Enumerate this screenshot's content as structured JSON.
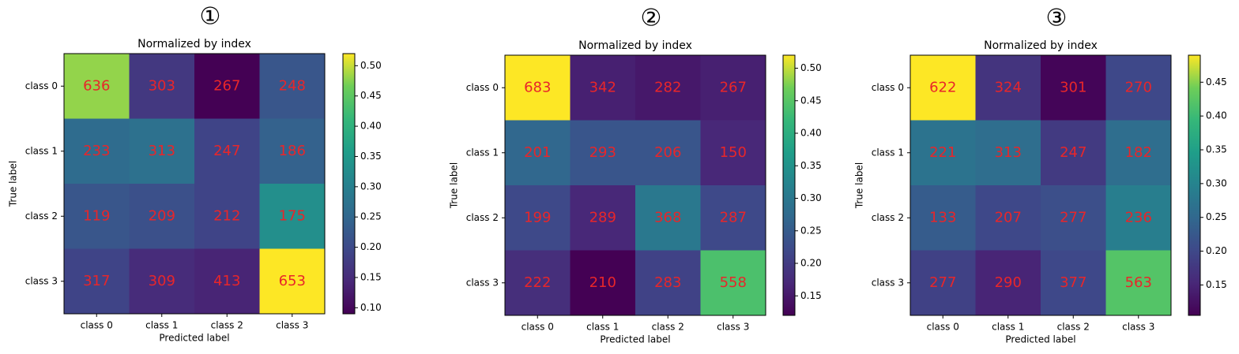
{
  "chart_data": [
    {
      "type": "heatmap",
      "label": "①",
      "title": "Normalized by index",
      "xlabel": "Predicted label",
      "ylabel": "True label",
      "categories": [
        "class 0",
        "class 1",
        "class 2",
        "class 3"
      ],
      "y_categories": [
        "class 0",
        "class 1",
        "class 2",
        "class 3"
      ],
      "values": [
        [
          636,
          303,
          267,
          248
        ],
        [
          233,
          313,
          247,
          186
        ],
        [
          119,
          209,
          212,
          175
        ],
        [
          317,
          309,
          413,
          653
        ]
      ],
      "z": [
        [
          0.48,
          0.17,
          0.09,
          0.22
        ],
        [
          0.26,
          0.27,
          0.19,
          0.24
        ],
        [
          0.22,
          0.21,
          0.19,
          0.33
        ],
        [
          0.19,
          0.15,
          0.14,
          0.52
        ]
      ],
      "zlim": [
        0.09,
        0.52
      ],
      "colormap": "viridis",
      "text_color": "#e8262a",
      "zticks": [
        {
          "value": 0.1,
          "label": "0.10"
        },
        {
          "value": 0.15,
          "label": "0.15"
        },
        {
          "value": 0.2,
          "label": "0.20"
        },
        {
          "value": 0.25,
          "label": "0.25"
        },
        {
          "value": 0.3,
          "label": "0.30"
        },
        {
          "value": 0.35,
          "label": "0.35"
        },
        {
          "value": 0.4,
          "label": "0.40"
        },
        {
          "value": 0.45,
          "label": "0.45"
        },
        {
          "value": 0.5,
          "label": "0.50"
        }
      ]
    },
    {
      "type": "heatmap",
      "label": "②",
      "title": "Normalized by index",
      "xlabel": "Predicted label",
      "ylabel": "True label",
      "categories": [
        "class 0",
        "class 1",
        "class 2",
        "class 3"
      ],
      "y_categories": [
        "class 0",
        "class 1",
        "class 2",
        "class 3"
      ],
      "values": [
        [
          683,
          342,
          282,
          267
        ],
        [
          201,
          293,
          206,
          150
        ],
        [
          199,
          289,
          368,
          287
        ],
        [
          222,
          210,
          283,
          558
        ]
      ],
      "z": [
        [
          0.52,
          0.16,
          0.15,
          0.16
        ],
        [
          0.27,
          0.24,
          0.24,
          0.17
        ],
        [
          0.22,
          0.17,
          0.3,
          0.22
        ],
        [
          0.18,
          0.12,
          0.21,
          0.44
        ]
      ],
      "zlim": [
        0.12,
        0.52
      ],
      "colormap": "viridis",
      "text_color": "#e8262a",
      "zticks": [
        {
          "value": 0.15,
          "label": "0.15"
        },
        {
          "value": 0.2,
          "label": "0.20"
        },
        {
          "value": 0.25,
          "label": "0.25"
        },
        {
          "value": 0.3,
          "label": "0.30"
        },
        {
          "value": 0.35,
          "label": "0.35"
        },
        {
          "value": 0.4,
          "label": "0.40"
        },
        {
          "value": 0.45,
          "label": "0.45"
        },
        {
          "value": 0.5,
          "label": "0.50"
        }
      ]
    },
    {
      "type": "heatmap",
      "label": "③",
      "title": "Normalized by index",
      "xlabel": "Predicted label",
      "ylabel": "True label",
      "categories": [
        "class 0",
        "class 1",
        "class 2",
        "class 3"
      ],
      "y_categories": [
        "class 0",
        "class 1",
        "class 2",
        "class 3"
      ],
      "values": [
        [
          622,
          324,
          301,
          270
        ],
        [
          221,
          313,
          247,
          182
        ],
        [
          133,
          207,
          277,
          236
        ],
        [
          277,
          290,
          377,
          563
        ]
      ],
      "z": [
        [
          0.49,
          0.17,
          0.11,
          0.2
        ],
        [
          0.27,
          0.26,
          0.18,
          0.26
        ],
        [
          0.23,
          0.2,
          0.21,
          0.29
        ],
        [
          0.19,
          0.15,
          0.2,
          0.42
        ]
      ],
      "zlim": [
        0.105,
        0.49
      ],
      "colormap": "viridis",
      "text_color": "#e8262a",
      "zticks": [
        {
          "value": 0.15,
          "label": "0.15"
        },
        {
          "value": 0.2,
          "label": "0.20"
        },
        {
          "value": 0.25,
          "label": "0.25"
        },
        {
          "value": 0.3,
          "label": "0.30"
        },
        {
          "value": 0.35,
          "label": "0.35"
        },
        {
          "value": 0.4,
          "label": "0.40"
        },
        {
          "value": 0.45,
          "label": "0.45"
        }
      ]
    }
  ]
}
